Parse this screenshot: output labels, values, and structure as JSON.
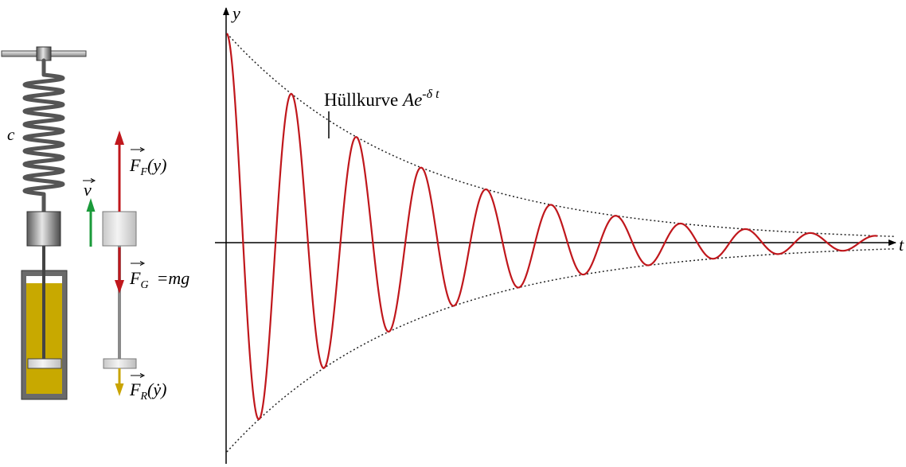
{
  "labels": {
    "spring": "c",
    "velocity": "v",
    "force_spring": {
      "symbol": "F",
      "sub": "F",
      "arg": "(y)"
    },
    "force_gravity": {
      "symbol": "F",
      "sub": "G",
      "rhs": "=mg"
    },
    "force_damping": {
      "symbol": "F",
      "sub": "R",
      "arg": "(ẏ)"
    },
    "axis_y": "y",
    "axis_t": "t",
    "envelope": {
      "text": "Hüllkurve ",
      "A": "A",
      "e": "e",
      "exp": "-δ t"
    }
  },
  "colors": {
    "oscillation": "#c0171c",
    "force_red": "#c0171c",
    "velocity_green": "#1a9a3a",
    "damping_yellow": "#c9a400",
    "oil": "#c8a900",
    "spring": "#555555"
  }
}
